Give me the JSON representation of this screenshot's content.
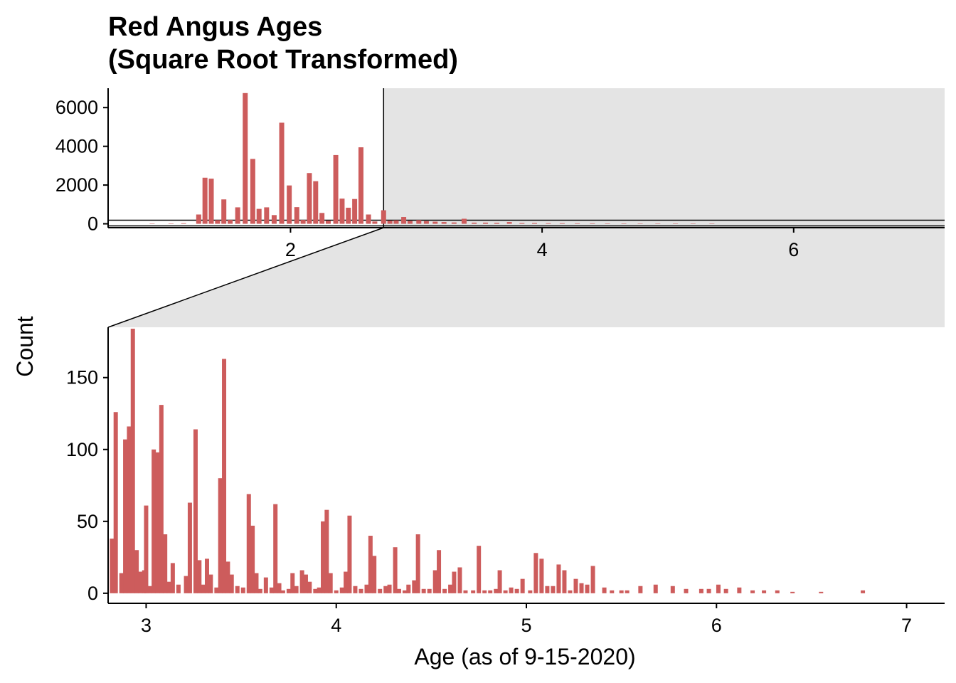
{
  "colors": {
    "bar": "#cd5c5c",
    "zoom_shade": "#e4e4e4",
    "axis": "#000000"
  },
  "chart_data": {
    "type": "bar",
    "title": [
      "Red Angus Ages",
      "(Square Root Transformed)"
    ],
    "xlabel": "Age (as of 9-15-2020)",
    "ylabel": "Count",
    "grid": false,
    "legend": "none",
    "overview": {
      "xlim": [
        0.55,
        7.2
      ],
      "ylim": [
        -200,
        7000
      ],
      "x_ticks": [
        2,
        4,
        6
      ],
      "y_ticks": [
        0,
        2000,
        4000,
        6000
      ],
      "zoom_x_start": 2.74,
      "zoom_y_range": [
        0,
        185
      ],
      "bins": [
        {
          "x": 0.9,
          "y": 10
        },
        {
          "x": 1.05,
          "y": 20
        },
        {
          "x": 1.15,
          "y": 30
        },
        {
          "x": 1.27,
          "y": 480
        },
        {
          "x": 1.32,
          "y": 2380
        },
        {
          "x": 1.37,
          "y": 2330
        },
        {
          "x": 1.42,
          "y": 190
        },
        {
          "x": 1.47,
          "y": 1260
        },
        {
          "x": 1.52,
          "y": 200
        },
        {
          "x": 1.58,
          "y": 850
        },
        {
          "x": 1.64,
          "y": 6750
        },
        {
          "x": 1.7,
          "y": 3350
        },
        {
          "x": 1.75,
          "y": 770
        },
        {
          "x": 1.81,
          "y": 850
        },
        {
          "x": 1.87,
          "y": 450
        },
        {
          "x": 1.93,
          "y": 5220
        },
        {
          "x": 1.99,
          "y": 1980
        },
        {
          "x": 2.05,
          "y": 860
        },
        {
          "x": 2.1,
          "y": 200
        },
        {
          "x": 2.15,
          "y": 2620
        },
        {
          "x": 2.2,
          "y": 2200
        },
        {
          "x": 2.25,
          "y": 560
        },
        {
          "x": 2.3,
          "y": 160
        },
        {
          "x": 2.36,
          "y": 3550
        },
        {
          "x": 2.41,
          "y": 1300
        },
        {
          "x": 2.46,
          "y": 830
        },
        {
          "x": 2.51,
          "y": 1280
        },
        {
          "x": 2.56,
          "y": 3950
        },
        {
          "x": 2.62,
          "y": 480
        },
        {
          "x": 2.67,
          "y": 120
        },
        {
          "x": 2.74,
          "y": 700
        },
        {
          "x": 2.79,
          "y": 160
        },
        {
          "x": 2.84,
          "y": 180
        },
        {
          "x": 2.9,
          "y": 350
        },
        {
          "x": 2.95,
          "y": 150
        },
        {
          "x": 3.02,
          "y": 190
        },
        {
          "x": 3.08,
          "y": 140
        },
        {
          "x": 3.15,
          "y": 110
        },
        {
          "x": 3.22,
          "y": 90
        },
        {
          "x": 3.3,
          "y": 70
        },
        {
          "x": 3.38,
          "y": 260
        },
        {
          "x": 3.46,
          "y": 60
        },
        {
          "x": 3.55,
          "y": 60
        },
        {
          "x": 3.64,
          "y": 50
        },
        {
          "x": 3.74,
          "y": 90
        },
        {
          "x": 3.84,
          "y": 40
        },
        {
          "x": 3.94,
          "y": 40
        },
        {
          "x": 4.05,
          "y": 30
        },
        {
          "x": 4.16,
          "y": 30
        },
        {
          "x": 4.28,
          "y": 25
        },
        {
          "x": 4.4,
          "y": 25
        },
        {
          "x": 4.52,
          "y": 20
        },
        {
          "x": 4.65,
          "y": 20
        },
        {
          "x": 4.78,
          "y": 15
        },
        {
          "x": 4.92,
          "y": 15
        },
        {
          "x": 5.06,
          "y": 10
        },
        {
          "x": 5.2,
          "y": 10
        },
        {
          "x": 5.35,
          "y": 8
        }
      ]
    },
    "detail": {
      "xlim": [
        2.8,
        7.2
      ],
      "ylim": [
        -7,
        185
      ],
      "x_ticks": [
        3,
        4,
        5,
        6,
        7
      ],
      "y_ticks": [
        0,
        50,
        100,
        150
      ],
      "bins": [
        {
          "x": 2.82,
          "y": 38
        },
        {
          "x": 2.84,
          "y": 126
        },
        {
          "x": 2.87,
          "y": 14
        },
        {
          "x": 2.89,
          "y": 107
        },
        {
          "x": 2.91,
          "y": 116
        },
        {
          "x": 2.93,
          "y": 184
        },
        {
          "x": 2.95,
          "y": 30
        },
        {
          "x": 2.97,
          "y": 15
        },
        {
          "x": 2.99,
          "y": 16
        },
        {
          "x": 3.0,
          "y": 61
        },
        {
          "x": 3.02,
          "y": 5
        },
        {
          "x": 3.04,
          "y": 100
        },
        {
          "x": 3.06,
          "y": 98
        },
        {
          "x": 3.08,
          "y": 131
        },
        {
          "x": 3.1,
          "y": 41
        },
        {
          "x": 3.12,
          "y": 8
        },
        {
          "x": 3.14,
          "y": 21
        },
        {
          "x": 3.17,
          "y": 6
        },
        {
          "x": 3.21,
          "y": 12
        },
        {
          "x": 3.23,
          "y": 63
        },
        {
          "x": 3.26,
          "y": 114
        },
        {
          "x": 3.28,
          "y": 23
        },
        {
          "x": 3.3,
          "y": 6
        },
        {
          "x": 3.32,
          "y": 24
        },
        {
          "x": 3.34,
          "y": 13
        },
        {
          "x": 3.37,
          "y": 4
        },
        {
          "x": 3.39,
          "y": 80
        },
        {
          "x": 3.41,
          "y": 163
        },
        {
          "x": 3.43,
          "y": 22
        },
        {
          "x": 3.45,
          "y": 13
        },
        {
          "x": 3.48,
          "y": 5
        },
        {
          "x": 3.51,
          "y": 4
        },
        {
          "x": 3.54,
          "y": 69
        },
        {
          "x": 3.56,
          "y": 47
        },
        {
          "x": 3.58,
          "y": 14
        },
        {
          "x": 3.6,
          "y": 3
        },
        {
          "x": 3.63,
          "y": 11
        },
        {
          "x": 3.66,
          "y": 4
        },
        {
          "x": 3.68,
          "y": 62
        },
        {
          "x": 3.7,
          "y": 7
        },
        {
          "x": 3.72,
          "y": 2
        },
        {
          "x": 3.75,
          "y": 3
        },
        {
          "x": 3.77,
          "y": 14
        },
        {
          "x": 3.79,
          "y": 5
        },
        {
          "x": 3.82,
          "y": 16
        },
        {
          "x": 3.84,
          "y": 13
        },
        {
          "x": 3.86,
          "y": 8
        },
        {
          "x": 3.89,
          "y": 3
        },
        {
          "x": 3.91,
          "y": 4
        },
        {
          "x": 3.93,
          "y": 50
        },
        {
          "x": 3.95,
          "y": 58
        },
        {
          "x": 3.97,
          "y": 14
        },
        {
          "x": 4.0,
          "y": 2
        },
        {
          "x": 4.03,
          "y": 4
        },
        {
          "x": 4.05,
          "y": 15
        },
        {
          "x": 4.07,
          "y": 54
        },
        {
          "x": 4.1,
          "y": 5
        },
        {
          "x": 4.13,
          "y": 3
        },
        {
          "x": 4.16,
          "y": 6
        },
        {
          "x": 4.18,
          "y": 40
        },
        {
          "x": 4.2,
          "y": 26
        },
        {
          "x": 4.23,
          "y": 3
        },
        {
          "x": 4.26,
          "y": 5
        },
        {
          "x": 4.28,
          "y": 6
        },
        {
          "x": 4.31,
          "y": 32
        },
        {
          "x": 4.33,
          "y": 3
        },
        {
          "x": 4.36,
          "y": 2
        },
        {
          "x": 4.38,
          "y": 6
        },
        {
          "x": 4.41,
          "y": 9
        },
        {
          "x": 4.43,
          "y": 41
        },
        {
          "x": 4.46,
          "y": 3
        },
        {
          "x": 4.49,
          "y": 3
        },
        {
          "x": 4.52,
          "y": 16
        },
        {
          "x": 4.54,
          "y": 30
        },
        {
          "x": 4.57,
          "y": 3
        },
        {
          "x": 4.6,
          "y": 6
        },
        {
          "x": 4.62,
          "y": 15
        },
        {
          "x": 4.65,
          "y": 18
        },
        {
          "x": 4.68,
          "y": 2
        },
        {
          "x": 4.72,
          "y": 2
        },
        {
          "x": 4.75,
          "y": 33
        },
        {
          "x": 4.78,
          "y": 2
        },
        {
          "x": 4.81,
          "y": 2
        },
        {
          "x": 4.84,
          "y": 3
        },
        {
          "x": 4.86,
          "y": 16
        },
        {
          "x": 4.89,
          "y": 2
        },
        {
          "x": 4.92,
          "y": 4
        },
        {
          "x": 4.95,
          "y": 3
        },
        {
          "x": 4.98,
          "y": 10
        },
        {
          "x": 5.02,
          "y": 2
        },
        {
          "x": 5.05,
          "y": 28
        },
        {
          "x": 5.08,
          "y": 24
        },
        {
          "x": 5.11,
          "y": 5
        },
        {
          "x": 5.14,
          "y": 5
        },
        {
          "x": 5.17,
          "y": 20
        },
        {
          "x": 5.2,
          "y": 16
        },
        {
          "x": 5.23,
          "y": 2
        },
        {
          "x": 5.26,
          "y": 10
        },
        {
          "x": 5.29,
          "y": 7
        },
        {
          "x": 5.32,
          "y": 6
        },
        {
          "x": 5.35,
          "y": 19
        },
        {
          "x": 5.41,
          "y": 4
        },
        {
          "x": 5.45,
          "y": 2
        },
        {
          "x": 5.5,
          "y": 2
        },
        {
          "x": 5.53,
          "y": 2
        },
        {
          "x": 5.6,
          "y": 5
        },
        {
          "x": 5.68,
          "y": 6
        },
        {
          "x": 5.77,
          "y": 5
        },
        {
          "x": 5.84,
          "y": 3
        },
        {
          "x": 5.92,
          "y": 3
        },
        {
          "x": 5.96,
          "y": 3
        },
        {
          "x": 6.01,
          "y": 6
        },
        {
          "x": 6.05,
          "y": 3
        },
        {
          "x": 6.12,
          "y": 4
        },
        {
          "x": 6.19,
          "y": 2
        },
        {
          "x": 6.25,
          "y": 2
        },
        {
          "x": 6.32,
          "y": 2
        },
        {
          "x": 6.4,
          "y": 1
        },
        {
          "x": 6.55,
          "y": 1
        },
        {
          "x": 6.77,
          "y": 2
        }
      ]
    }
  }
}
